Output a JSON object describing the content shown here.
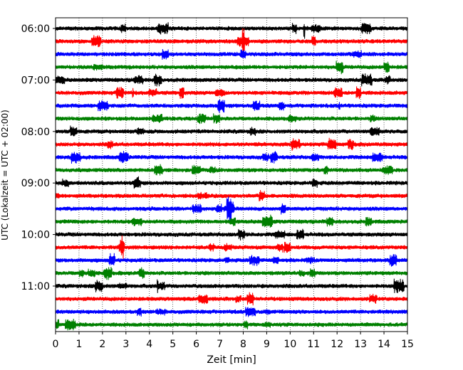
{
  "chart_data": {
    "type": "line",
    "subtype": "helicorder",
    "xlabel": "Zeit  [min]",
    "ylabel": "UTC (Lokalzeit = UTC + 02:00)",
    "xlim": [
      0,
      15
    ],
    "x_ticks": [
      "0",
      "1",
      "2",
      "3",
      "4",
      "5",
      "6",
      "7",
      "8",
      "9",
      "10",
      "11",
      "12",
      "13",
      "14",
      "15"
    ],
    "y_tick_labels": [
      "06:00",
      "07:00",
      "08:00",
      "09:00",
      "10:00",
      "11:00"
    ],
    "x_grid": "dotted",
    "traces_per_hour": 4,
    "trace_colors": [
      "#000000",
      "#ff0000",
      "#0000ff",
      "#008000"
    ],
    "trace_count": 24,
    "trace_start_times": [
      "06:00",
      "06:15",
      "06:30",
      "06:45",
      "07:00",
      "07:15",
      "07:30",
      "07:45",
      "08:00",
      "08:15",
      "08:30",
      "08:45",
      "09:00",
      "09:15",
      "09:30",
      "09:45",
      "10:00",
      "10:15",
      "10:30",
      "10:45",
      "11:00",
      "11:15",
      "11:30",
      "11:45"
    ],
    "spikes": [
      {
        "trace": 0,
        "minute": 10.6,
        "amplitude": 3.0
      },
      {
        "trace": 20,
        "minute": 4.35,
        "amplitude": 2.5
      },
      {
        "trace": 5,
        "minute": 3.3,
        "amplitude": 1.2
      },
      {
        "trace": 7,
        "minute": 4.35,
        "amplitude": 1.4
      },
      {
        "trace": 6,
        "minute": 12.1,
        "amplitude": 1.3
      }
    ]
  }
}
